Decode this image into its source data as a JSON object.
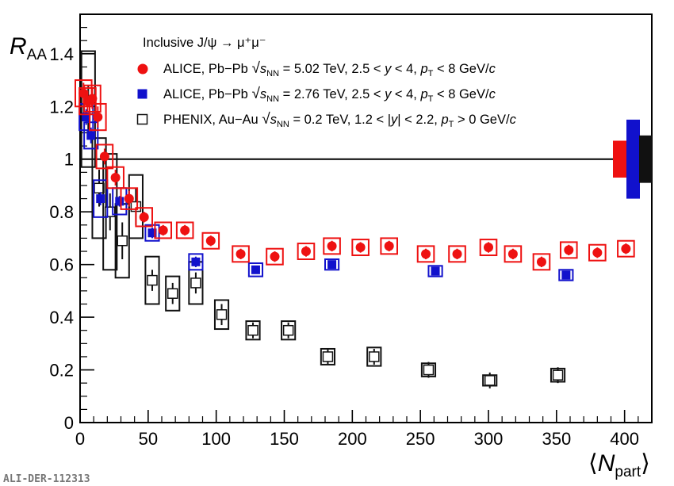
{
  "chart_data": {
    "type": "scatter",
    "title": "Inclusive J/ψ → μ⁺μ⁻",
    "ylabel": {
      "main": "R",
      "sub": "AA"
    },
    "xlabel": {
      "left": "⟨",
      "main": "N",
      "sub": "part",
      "right": "⟩"
    },
    "xlim": [
      0,
      420
    ],
    "ylim": [
      0,
      1.55
    ],
    "xticks": [
      0,
      50,
      100,
      150,
      200,
      250,
      300,
      350,
      400
    ],
    "xtick_labels": [
      "0",
      "50",
      "100",
      "150",
      "200",
      "250",
      "300",
      "350",
      "400"
    ],
    "yticks": [
      0,
      0.2,
      0.4,
      0.6,
      0.8,
      1.0,
      1.2,
      1.4
    ],
    "ytick_labels": [
      "0",
      "0.2",
      "0.4",
      "0.6",
      "0.8",
      "1",
      "1.2",
      "1.4"
    ],
    "reference_line": 1.0,
    "legend_position": "top",
    "series": [
      {
        "name": "ALICE, Pb−Pb",
        "label_parts": [
          "ALICE, Pb−Pb ",
          "√",
          "s",
          "NN",
          " = 5.02 TeV, 2.5 < ",
          "y",
          " < 4, ",
          "p",
          "T",
          " < 8 GeV/",
          "c"
        ],
        "marker": "filled-circle",
        "color": "#ee1111",
        "box_half_width": 6,
        "global_uncertainty": [
          0.93,
          1.07
        ],
        "points": [
          {
            "x": 2.5,
            "y": 1.25,
            "stat": 0.04,
            "syst": 0.05
          },
          {
            "x": 5.5,
            "y": 1.22,
            "stat": 0.04,
            "syst": 0.05
          },
          {
            "x": 9,
            "y": 1.23,
            "stat": 0.04,
            "syst": 0.05
          },
          {
            "x": 13,
            "y": 1.16,
            "stat": 0.04,
            "syst": 0.05
          },
          {
            "x": 18,
            "y": 1.01,
            "stat": 0.03,
            "syst": 0.045
          },
          {
            "x": 26,
            "y": 0.93,
            "stat": 0.03,
            "syst": 0.04
          },
          {
            "x": 36,
            "y": 0.85,
            "stat": 0.03,
            "syst": 0.04
          },
          {
            "x": 47,
            "y": 0.78,
            "stat": 0.02,
            "syst": 0.035
          },
          {
            "x": 61,
            "y": 0.73,
            "stat": 0.02,
            "syst": 0.03
          },
          {
            "x": 77,
            "y": 0.73,
            "stat": 0.02,
            "syst": 0.03
          },
          {
            "x": 96,
            "y": 0.69,
            "stat": 0.02,
            "syst": 0.03
          },
          {
            "x": 118,
            "y": 0.64,
            "stat": 0.02,
            "syst": 0.03
          },
          {
            "x": 143,
            "y": 0.63,
            "stat": 0.02,
            "syst": 0.03
          },
          {
            "x": 166,
            "y": 0.65,
            "stat": 0.02,
            "syst": 0.03
          },
          {
            "x": 185,
            "y": 0.67,
            "stat": 0.02,
            "syst": 0.03
          },
          {
            "x": 206,
            "y": 0.665,
            "stat": 0.02,
            "syst": 0.03
          },
          {
            "x": 227,
            "y": 0.67,
            "stat": 0.02,
            "syst": 0.03
          },
          {
            "x": 254,
            "y": 0.64,
            "stat": 0.02,
            "syst": 0.03
          },
          {
            "x": 277,
            "y": 0.64,
            "stat": 0.02,
            "syst": 0.03
          },
          {
            "x": 300,
            "y": 0.665,
            "stat": 0.02,
            "syst": 0.03
          },
          {
            "x": 318,
            "y": 0.64,
            "stat": 0.02,
            "syst": 0.03
          },
          {
            "x": 339,
            "y": 0.61,
            "stat": 0.02,
            "syst": 0.03
          },
          {
            "x": 359,
            "y": 0.655,
            "stat": 0.02,
            "syst": 0.03
          },
          {
            "x": 380,
            "y": 0.645,
            "stat": 0.02,
            "syst": 0.03
          },
          {
            "x": 401,
            "y": 0.66,
            "stat": 0.02,
            "syst": 0.03
          }
        ]
      },
      {
        "name": "ALICE, Pb−Pb",
        "label_parts": [
          "ALICE, Pb−Pb ",
          "√",
          "s",
          "NN",
          " = 2.76 TeV, 2.5 < ",
          "y",
          " < 4, ",
          "p",
          "T",
          " < 8 GeV/",
          "c"
        ],
        "marker": "filled-square",
        "color": "#1111cc",
        "box_half_width": 5,
        "global_uncertainty": [
          0.85,
          1.15
        ],
        "points": [
          {
            "x": 4.5,
            "y": 1.16,
            "stat": 0.03,
            "syst": 0.05
          },
          {
            "x": 8,
            "y": 1.09,
            "stat": 0.03,
            "syst": 0.05
          },
          {
            "x": 15,
            "y": 0.85,
            "stat": 0.025,
            "syst": 0.07
          },
          {
            "x": 29,
            "y": 0.84,
            "stat": 0.02,
            "syst": 0.05
          },
          {
            "x": 53,
            "y": 0.72,
            "stat": 0.02,
            "syst": 0.03
          },
          {
            "x": 85,
            "y": 0.61,
            "stat": 0.02,
            "syst": 0.03
          },
          {
            "x": 129,
            "y": 0.58,
            "stat": 0.015,
            "syst": 0.025
          },
          {
            "x": 185,
            "y": 0.6,
            "stat": 0.015,
            "syst": 0.02
          },
          {
            "x": 261,
            "y": 0.575,
            "stat": 0.015,
            "syst": 0.02
          },
          {
            "x": 357,
            "y": 0.56,
            "stat": 0.015,
            "syst": 0.02
          }
        ]
      },
      {
        "name": "PHENIX, Au−Au",
        "label_parts": [
          "PHENIX, Au−Au ",
          "√",
          "s",
          "NN",
          " = 0.2 TeV, 1.2 < |",
          "y",
          "| < 2.2, ",
          "p",
          "T",
          " > 0 GeV/",
          "c"
        ],
        "marker": "open-square",
        "color": "#111111",
        "box_half_width": 5,
        "global_uncertainty": [
          0.91,
          1.09
        ],
        "points": [
          {
            "x": 6,
            "y": 1.19,
            "stat": 0.09,
            "syst": 0.22
          },
          {
            "x": 14,
            "y": 0.89,
            "stat": 0.07,
            "syst": 0.19
          },
          {
            "x": 22,
            "y": 0.8,
            "stat": 0.07,
            "syst": 0.22
          },
          {
            "x": 31,
            "y": 0.69,
            "stat": 0.07,
            "syst": 0.14
          },
          {
            "x": 41,
            "y": 0.82,
            "stat": 0.07,
            "syst": 0.12
          },
          {
            "x": 53,
            "y": 0.54,
            "stat": 0.04,
            "syst": 0.09
          },
          {
            "x": 68,
            "y": 0.49,
            "stat": 0.04,
            "syst": 0.065
          },
          {
            "x": 85,
            "y": 0.53,
            "stat": 0.04,
            "syst": 0.08
          },
          {
            "x": 104,
            "y": 0.41,
            "stat": 0.04,
            "syst": 0.055
          },
          {
            "x": 127,
            "y": 0.35,
            "stat": 0.03,
            "syst": 0.035
          },
          {
            "x": 153,
            "y": 0.35,
            "stat": 0.03,
            "syst": 0.035
          },
          {
            "x": 182,
            "y": 0.25,
            "stat": 0.03,
            "syst": 0.03
          },
          {
            "x": 216,
            "y": 0.25,
            "stat": 0.03,
            "syst": 0.035
          },
          {
            "x": 256,
            "y": 0.2,
            "stat": 0.03,
            "syst": 0.025
          },
          {
            "x": 301,
            "y": 0.16,
            "stat": 0.03,
            "syst": 0.02
          },
          {
            "x": 351,
            "y": 0.18,
            "stat": 0.03,
            "syst": 0.025
          }
        ]
      }
    ]
  },
  "credit": "ALI-DER-112313"
}
